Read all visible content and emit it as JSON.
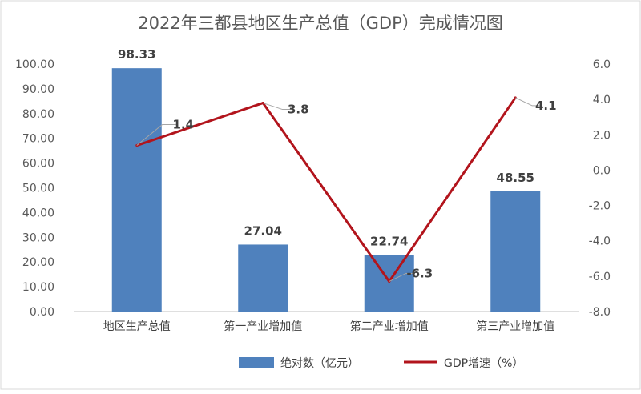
{
  "chart_data": {
    "type": "bar",
    "title": "2022年三都县地区生产总值（GDP）完成情况图",
    "categories": [
      "地区生产总值",
      "第一产业增加值",
      "第二产业增加值",
      "第三产业增加值"
    ],
    "series": [
      {
        "name": "绝对数（亿元）",
        "type": "bar",
        "axis": "left",
        "values": [
          98.33,
          27.04,
          22.74,
          48.55
        ],
        "labels": [
          "98.33",
          "27.04",
          "22.74",
          "48.55"
        ],
        "color": "#4f81bd"
      },
      {
        "name": "GDP增速（%）",
        "type": "line",
        "axis": "right",
        "values": [
          1.4,
          3.8,
          -6.3,
          4.1
        ],
        "labels": [
          "1.4",
          "3.8",
          "-6.3",
          "4.1"
        ],
        "color": "#b2141c"
      }
    ],
    "y_left": {
      "ylim": [
        0,
        100
      ],
      "ticks": [
        "0.00",
        "10.00",
        "20.00",
        "30.00",
        "40.00",
        "50.00",
        "60.00",
        "70.00",
        "80.00",
        "90.00",
        "100.00"
      ]
    },
    "y_right": {
      "ylim": [
        -8,
        6
      ],
      "ticks": [
        "-8.0",
        "-6.0",
        "-4.0",
        "-2.0",
        "0.0",
        "2.0",
        "4.0",
        "6.0"
      ]
    },
    "grid": false,
    "legend_position": "bottom"
  }
}
